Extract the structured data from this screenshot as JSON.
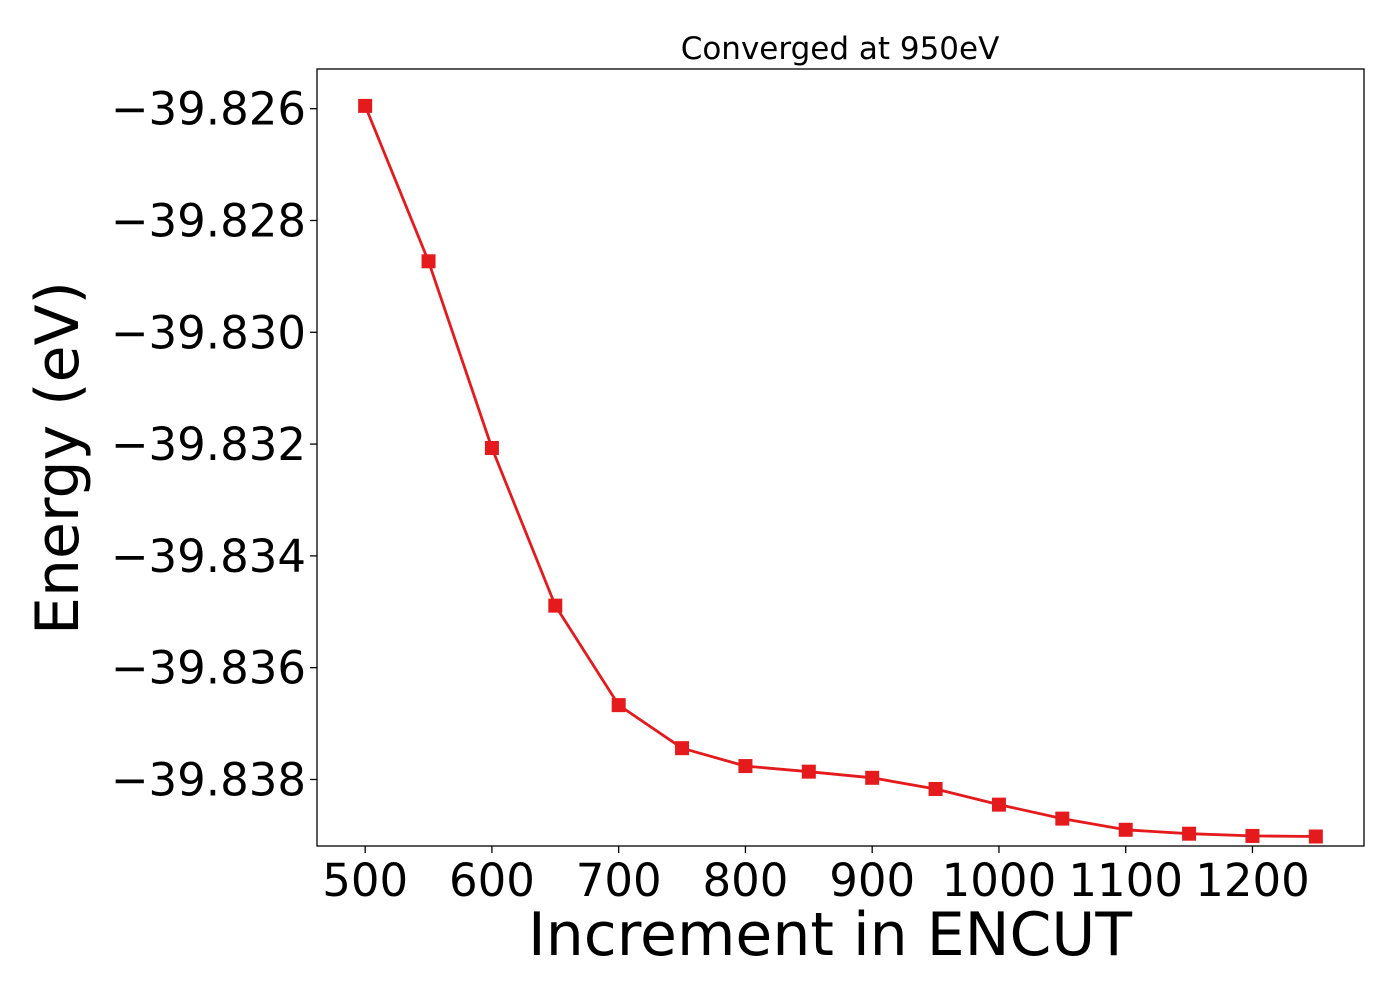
{
  "chart_data": {
    "type": "line",
    "title": "Converged at 950eV",
    "xlabel": "Increment in ENCUT",
    "ylabel": "Energy (eV)",
    "x": [
      500,
      550,
      600,
      650,
      700,
      750,
      800,
      850,
      900,
      950,
      1000,
      1050,
      1100,
      1150,
      1200,
      1250
    ],
    "series": [
      {
        "color": "#e41a1c",
        "marker": "square",
        "values": [
          -39.82595,
          -39.82873,
          -39.83207,
          -39.83489,
          -39.83667,
          -39.83744,
          -39.83776,
          -39.83786,
          -39.83797,
          -39.83817,
          -39.83845,
          -39.8387,
          -39.8389,
          -39.83897,
          -39.83901,
          -39.83902
        ]
      }
    ],
    "xlim": [
      462,
      1288
    ],
    "ylim": [
      -39.83919,
      -39.82529
    ],
    "xticks": [
      500,
      600,
      700,
      800,
      900,
      1000,
      1100,
      1200
    ],
    "xtick_labels": [
      "500",
      "600",
      "700",
      "800",
      "900",
      "1000",
      "1100",
      "1200"
    ],
    "yticks": [
      -39.826,
      -39.828,
      -39.83,
      -39.832,
      -39.834,
      -39.836,
      -39.838
    ],
    "ytick_labels": [
      "−39.826",
      "−39.828",
      "−39.830",
      "−39.832",
      "−39.834",
      "−39.836",
      "−39.838"
    ],
    "grid": false,
    "legend": false
  }
}
